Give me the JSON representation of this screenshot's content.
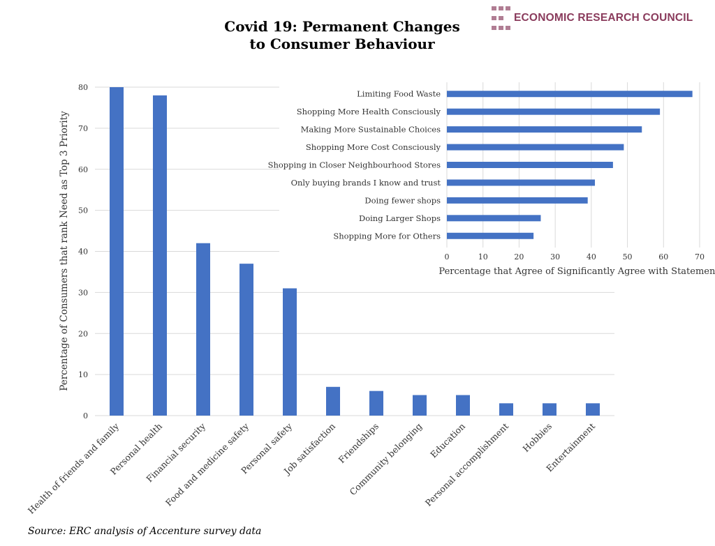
{
  "title": [
    "Covid 19: Permanent Changes",
    "to Consumer Behaviour"
  ],
  "logo_text": "ECONOMIC RESEARCH COUNCIL",
  "source": "Source: ERC analysis of Accenture survey data",
  "colors": {
    "bar": "#4472c4",
    "grid": "#d9d9d9",
    "logo": "#8a3b5c"
  },
  "chart_data": [
    {
      "type": "bar",
      "orientation": "vertical",
      "categories": [
        "Health of friends and family",
        "Personal health",
        "Financial security",
        "Food and medicine safety",
        "Personal safety",
        "Job satisfaction",
        "Friendships",
        "Community belonging",
        "Education",
        "Personal accomplishment",
        "Hobbies",
        "Entertainment"
      ],
      "values": [
        80,
        78,
        42,
        37,
        31,
        7,
        6,
        5,
        5,
        3,
        3,
        3
      ],
      "xlabel": "",
      "ylabel": "Percentage  of Consumers that rank Need as Top 3 Priority",
      "ylim": [
        0,
        80
      ],
      "yticks": [
        0,
        10,
        20,
        30,
        40,
        50,
        60,
        70,
        80
      ],
      "grid": true
    },
    {
      "type": "bar",
      "orientation": "horizontal",
      "categories": [
        "Limiting Food Waste",
        "Shopping More Health Consciously",
        "Making More Sustainable Choices",
        "Shopping More Cost Consciously",
        "Shopping in Closer Neighbourhood Stores",
        "Only buying brands I know and trust",
        "Doing fewer shops",
        "Doing Larger Shops",
        "Shopping More for Others"
      ],
      "values": [
        68,
        59,
        54,
        49,
        46,
        41,
        39,
        26,
        24
      ],
      "xlabel": "Percentage that Agree of Significantly Agree with Statement",
      "ylabel": "",
      "xlim": [
        0,
        70
      ],
      "xticks": [
        0,
        10,
        20,
        30,
        40,
        50,
        60,
        70
      ],
      "grid": true
    }
  ]
}
